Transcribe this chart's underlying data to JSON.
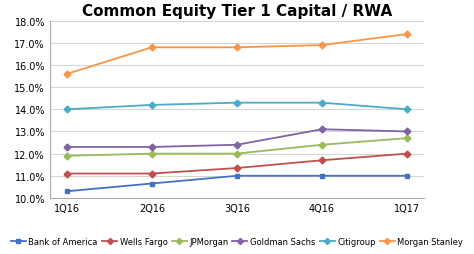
{
  "title": "Common Equity Tier 1 Capital / RWA",
  "x_labels": [
    "1Q16",
    "2Q16",
    "3Q16",
    "4Q16",
    "1Q17"
  ],
  "series": [
    {
      "name": "Bank of America",
      "color": "#4472C4",
      "marker": "s",
      "values": [
        0.103,
        0.1065,
        0.11,
        0.11,
        0.11
      ]
    },
    {
      "name": "Wells Fargo",
      "color": "#C0504D",
      "marker": "D",
      "values": [
        0.111,
        0.111,
        0.1135,
        0.117,
        0.12
      ]
    },
    {
      "name": "JPMorgan",
      "color": "#9BBB59",
      "marker": "D",
      "values": [
        0.119,
        0.12,
        0.12,
        0.124,
        0.127
      ]
    },
    {
      "name": "Goldman Sachs",
      "color": "#8064A2",
      "marker": "D",
      "values": [
        0.123,
        0.123,
        0.124,
        0.131,
        0.13
      ]
    },
    {
      "name": "Citigroup",
      "color": "#4BACC6",
      "marker": "D",
      "values": [
        0.14,
        0.142,
        0.143,
        0.143,
        0.14
      ]
    },
    {
      "name": "Morgan Stanley",
      "color": "#F79646",
      "marker": "D",
      "values": [
        0.156,
        0.168,
        0.168,
        0.169,
        0.174
      ]
    }
  ],
  "ylim": [
    0.1,
    0.18
  ],
  "yticks": [
    0.1,
    0.11,
    0.12,
    0.13,
    0.14,
    0.15,
    0.16,
    0.17,
    0.18
  ],
  "background_color": "#FFFFFF",
  "plot_bg_color": "#FFFFFF",
  "title_fontsize": 11,
  "tick_fontsize": 7,
  "legend_fontsize": 6
}
